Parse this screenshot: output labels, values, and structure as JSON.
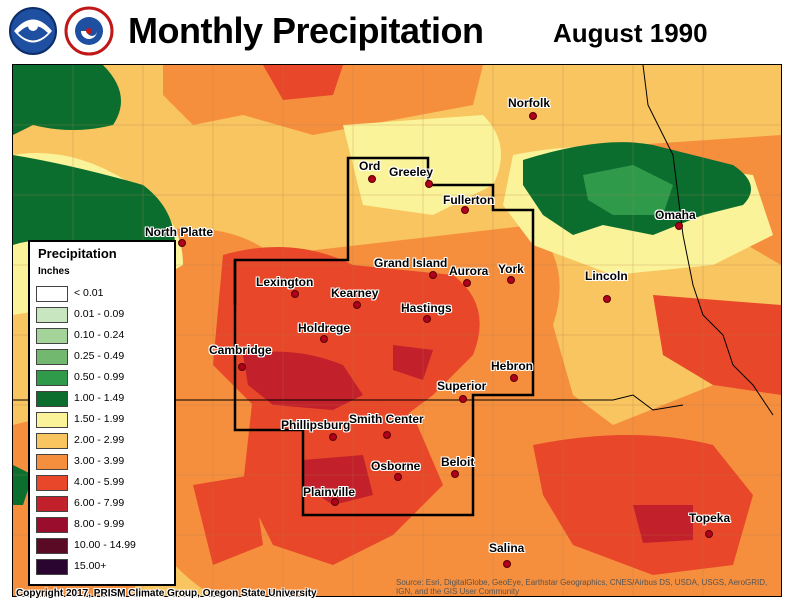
{
  "header": {
    "title": "Monthly Precipitation",
    "period": "August 1990",
    "logos": [
      "noaa-logo",
      "national-weather-service-logo"
    ]
  },
  "legend": {
    "title": "Precipitation",
    "unit": "Inches",
    "items": [
      {
        "label": "< 0.01",
        "color": "#ffffff"
      },
      {
        "label": "0.01 - 0.09",
        "color": "#c8e6c0"
      },
      {
        "label": "0.10 - 0.24",
        "color": "#a5d49b"
      },
      {
        "label": "0.25 - 0.49",
        "color": "#72b86e"
      },
      {
        "label": "0.50 - 0.99",
        "color": "#2e9a4a"
      },
      {
        "label": "1.00 - 1.49",
        "color": "#0b6e2e"
      },
      {
        "label": "1.50 - 1.99",
        "color": "#fbf39a"
      },
      {
        "label": "2.00 - 2.99",
        "color": "#f8c560"
      },
      {
        "label": "3.00 - 3.99",
        "color": "#f58f3e"
      },
      {
        "label": "4.00 - 5.99",
        "color": "#e8472a"
      },
      {
        "label": "6.00 - 7.99",
        "color": "#c2202a"
      },
      {
        "label": "8.00 - 9.99",
        "color": "#9a0d2c"
      },
      {
        "label": "10.00 - 14.99",
        "color": "#5a0a24"
      },
      {
        "label": "15.00+",
        "color": "#2a0530"
      }
    ]
  },
  "cities": [
    {
      "name": "Norfolk"
    },
    {
      "name": "Ord"
    },
    {
      "name": "Greeley"
    },
    {
      "name": "Fullerton"
    },
    {
      "name": "North Platte"
    },
    {
      "name": "Omaha"
    },
    {
      "name": "Grand Island"
    },
    {
      "name": "Aurora"
    },
    {
      "name": "York"
    },
    {
      "name": "Lincoln"
    },
    {
      "name": "Lexington"
    },
    {
      "name": "Kearney"
    },
    {
      "name": "Hastings"
    },
    {
      "name": "Holdrege"
    },
    {
      "name": "Cambridge"
    },
    {
      "name": "Hebron"
    },
    {
      "name": "Superior"
    },
    {
      "name": "Phillipsburg"
    },
    {
      "name": "Smith Center"
    },
    {
      "name": "Beloit"
    },
    {
      "name": "Osborne"
    },
    {
      "name": "Plainville"
    },
    {
      "name": "Topeka"
    },
    {
      "name": "Salina"
    }
  ],
  "footer": {
    "copyright": "Copyright 2017, PRISM Climate Group, Oregon State University",
    "source": "Source: Esri, DigitalGlobe, GeoEye, Earthstar Geographics, CNES/Airbus DS, USDA, USGS, AeroGRID, IGN, and the GIS User Community"
  }
}
